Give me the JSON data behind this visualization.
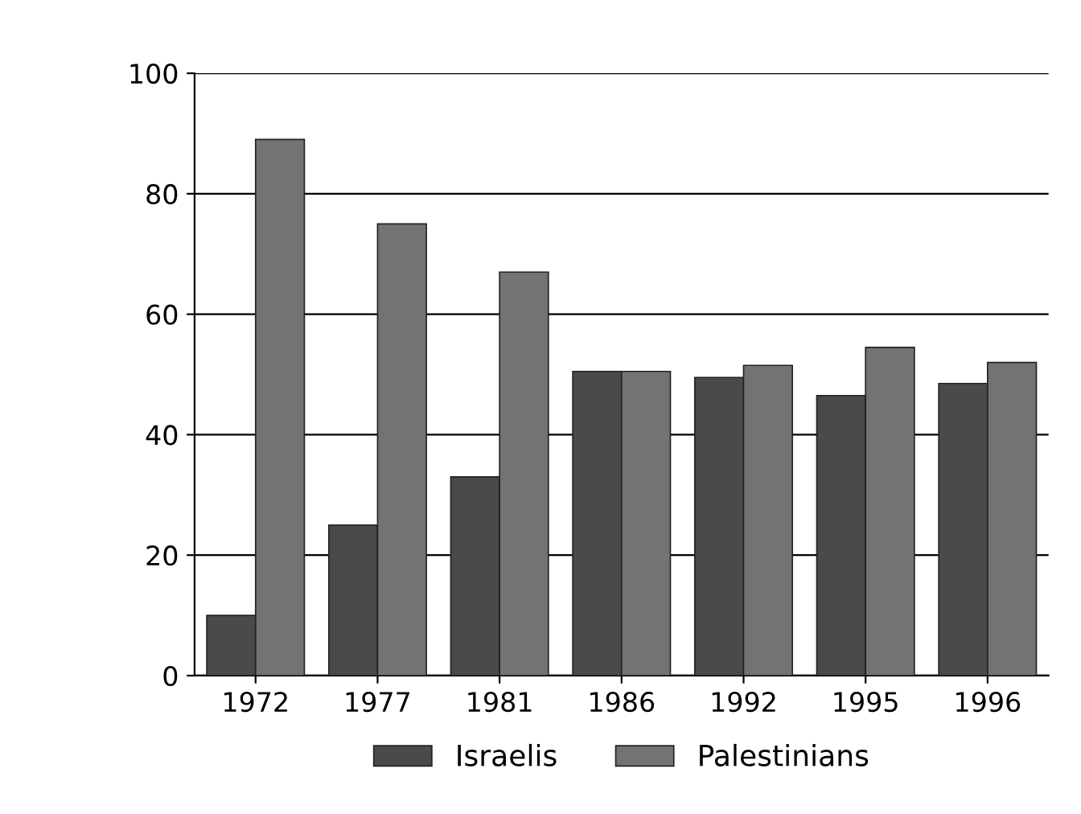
{
  "chart_data": {
    "type": "bar",
    "categories": [
      "1972",
      "1977",
      "1981",
      "1986",
      "1992",
      "1995",
      "1996"
    ],
    "series": [
      {
        "name": "Israelis",
        "color": "#4a4a4a",
        "values": [
          10,
          25,
          33,
          50.5,
          49.5,
          46.5,
          48.5
        ]
      },
      {
        "name": "Palestinians",
        "color": "#737373",
        "values": [
          89,
          75,
          67,
          50.5,
          51.5,
          54.5,
          52
        ]
      }
    ],
    "ylim": [
      0,
      100
    ],
    "yticks": [
      0,
      20,
      40,
      60,
      80,
      100
    ],
    "grid": "y",
    "legend": "bottom"
  }
}
